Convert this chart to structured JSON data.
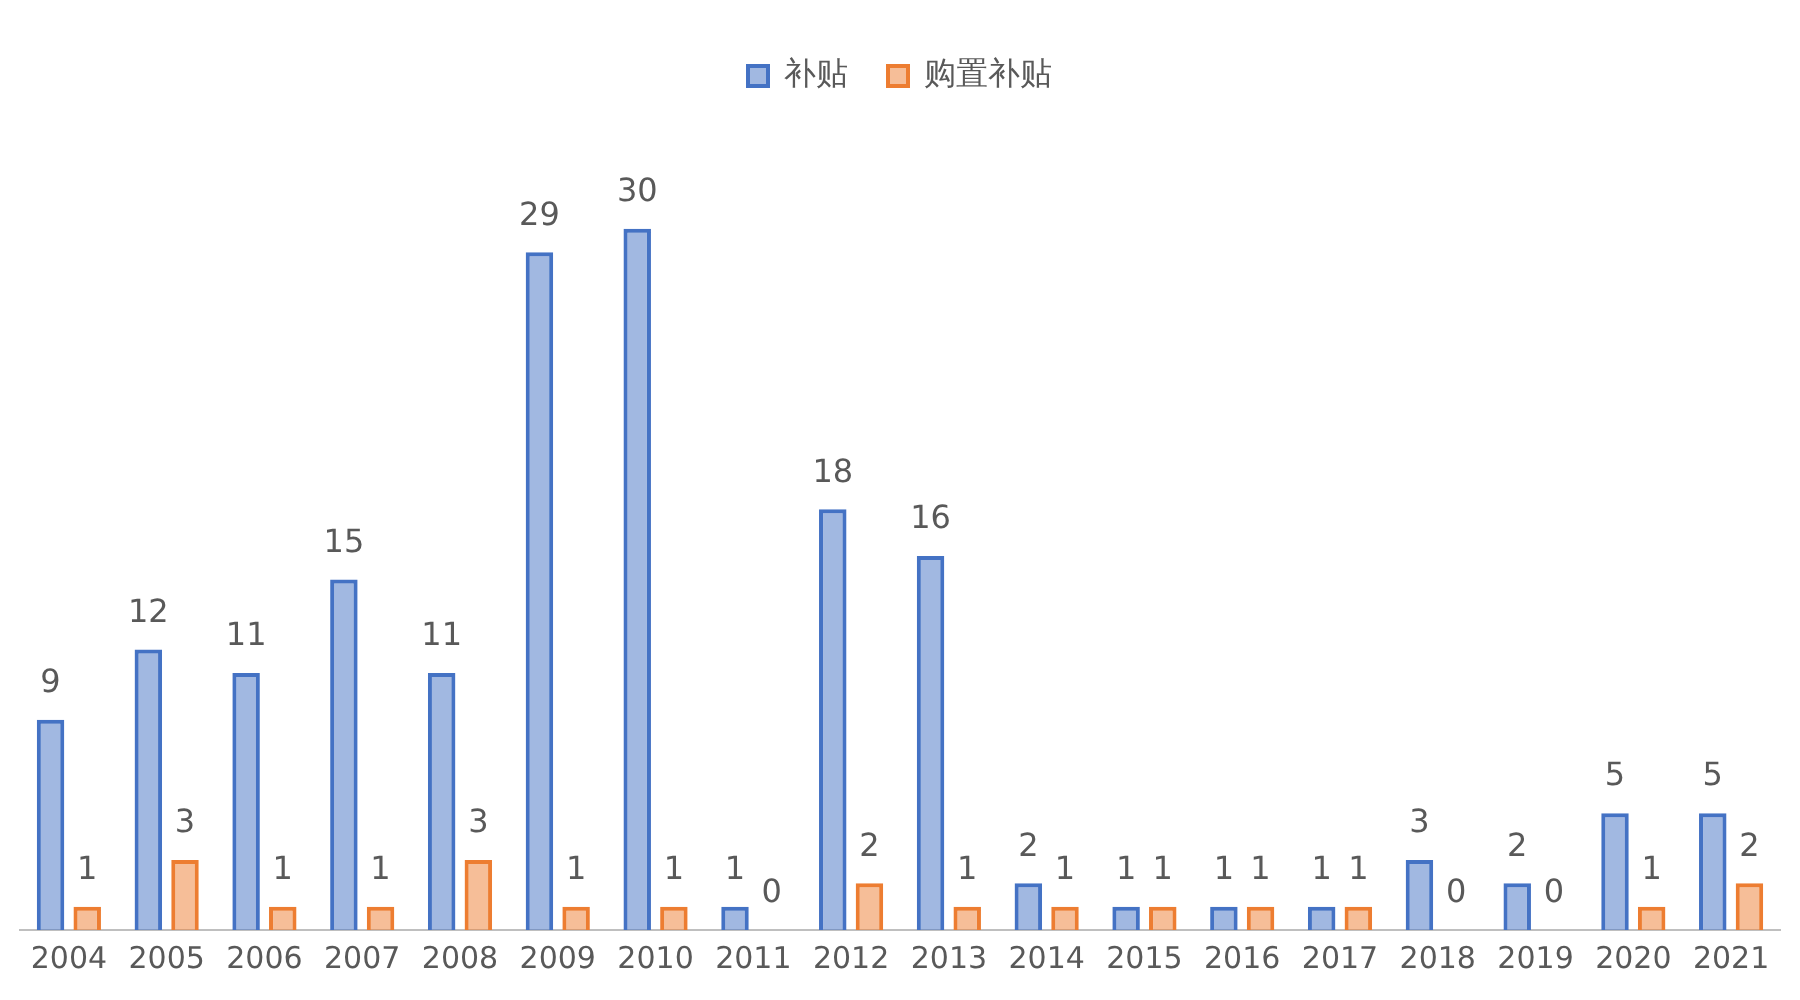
{
  "chart_data": {
    "type": "bar",
    "categories": [
      "2004",
      "2005",
      "2006",
      "2007",
      "2008",
      "2009",
      "2010",
      "2011",
      "2012",
      "2013",
      "2014",
      "2015",
      "2016",
      "2017",
      "2018",
      "2019",
      "2020",
      "2021"
    ],
    "series": [
      {
        "name": "补贴",
        "color": "#4472c4",
        "values": [
          9,
          12,
          11,
          15,
          11,
          29,
          30,
          1,
          18,
          16,
          2,
          1,
          1,
          1,
          3,
          2,
          5,
          5
        ]
      },
      {
        "name": "购置补贴",
        "color": "#ed7d31",
        "values": [
          1,
          3,
          1,
          1,
          3,
          1,
          1,
          0,
          2,
          1,
          1,
          1,
          1,
          1,
          0,
          0,
          1,
          2
        ]
      }
    ],
    "data_labels": true,
    "legend": "top",
    "grid": false,
    "tick_labels": "x"
  }
}
